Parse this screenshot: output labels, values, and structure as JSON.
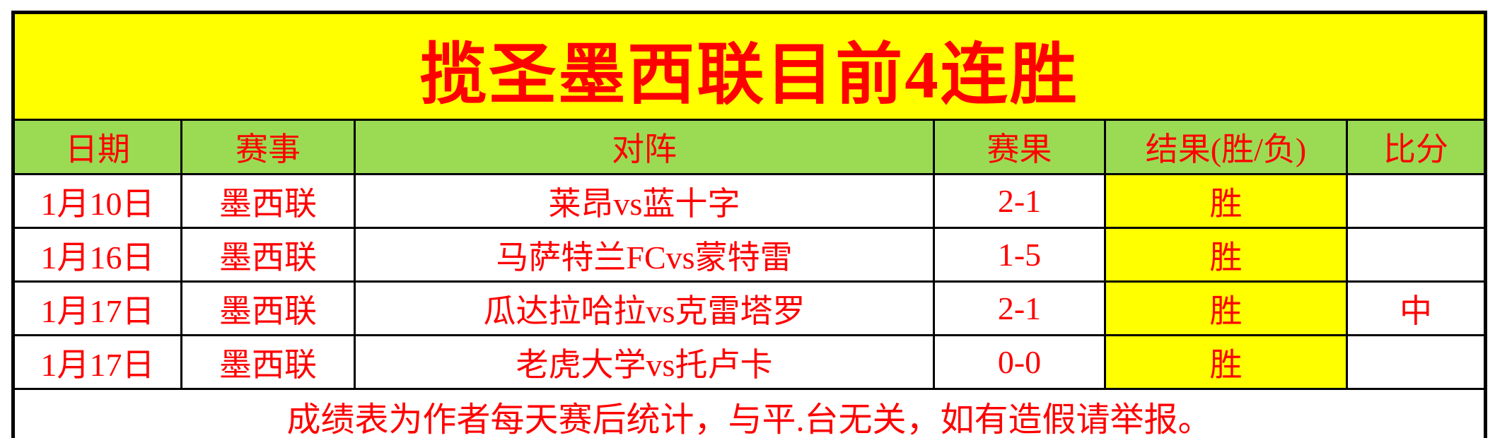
{
  "title": {
    "text": "揽圣墨西联目前4连胜"
  },
  "table": {
    "headers": {
      "date": "日期",
      "league": "赛事",
      "match": "对阵",
      "score": "赛果",
      "result": "结果(胜/负)",
      "bifen": "比分"
    },
    "rows": [
      {
        "date": "1月10日",
        "league": "墨西联",
        "match": "莱昂vs蓝十字",
        "score": "2-1",
        "result": "胜",
        "bifen": ""
      },
      {
        "date": "1月16日",
        "league": "墨西联",
        "match": "马萨特兰FCvs蒙特雷",
        "score": "1-5",
        "result": "胜",
        "bifen": ""
      },
      {
        "date": "1月17日",
        "league": "墨西联",
        "match": "瓜达拉哈拉vs克雷塔罗",
        "score": "2-1",
        "result": "胜",
        "bifen": "中"
      },
      {
        "date": "1月17日",
        "league": "墨西联",
        "match": "老虎大学vs托卢卡",
        "score": "0-0",
        "result": "胜",
        "bifen": ""
      }
    ],
    "footer": "成绩表为作者每天赛后统计，与平.台无关，如有造假请举报。"
  },
  "colors": {
    "banner_bg": "#FFFF00",
    "header_bg": "#9ADB53",
    "win_bg": "#FFFF00",
    "text_red": "#FF0000",
    "border": "#000000"
  }
}
